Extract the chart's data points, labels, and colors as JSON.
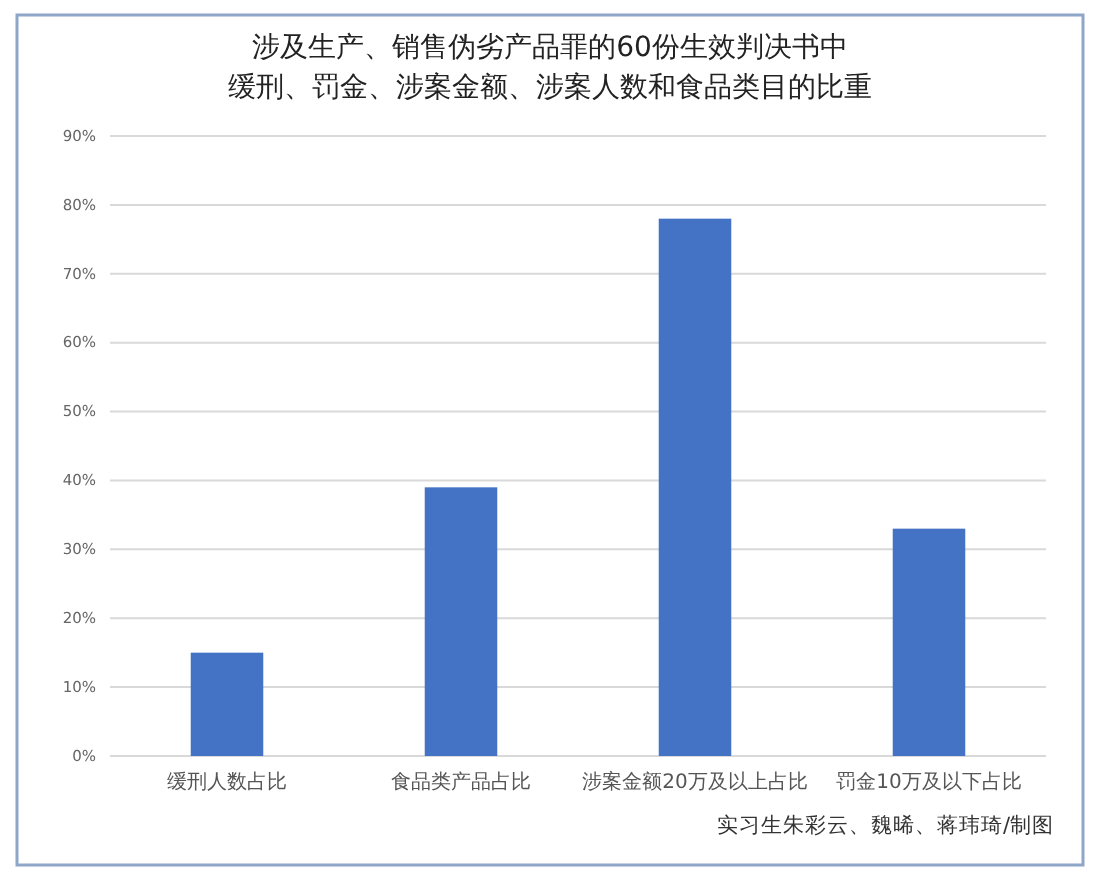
{
  "chart_data": {
    "type": "bar",
    "title": "涉及生产、销售伪劣产品罪的60份生效判决书中缓刑、罚金、涉案金额、涉案人数和食品类目的比重",
    "categories": [
      "缓刑人数占比",
      "食品类产品占比",
      "涉案金额20万及以上占比",
      "罚金10万及以下占比"
    ],
    "values": [
      15,
      39,
      78,
      33
    ],
    "color": "#4472c4",
    "ylim": [
      0,
      90
    ],
    "yticks": [
      {
        "value": 0,
        "label": "0%"
      },
      {
        "value": 10,
        "label": "10%"
      },
      {
        "value": 20,
        "label": "20%"
      },
      {
        "value": 30,
        "label": "30%"
      },
      {
        "value": 40,
        "label": "40%"
      },
      {
        "value": 50,
        "label": "50%"
      },
      {
        "value": 60,
        "label": "60%"
      },
      {
        "value": 70,
        "label": "70%"
      },
      {
        "value": 80,
        "label": "80%"
      },
      {
        "value": 90,
        "label": "90%"
      }
    ],
    "grid": "y",
    "annotations": [
      "实习生朱彩云、魏晞、蒋玮琦/制图"
    ]
  }
}
